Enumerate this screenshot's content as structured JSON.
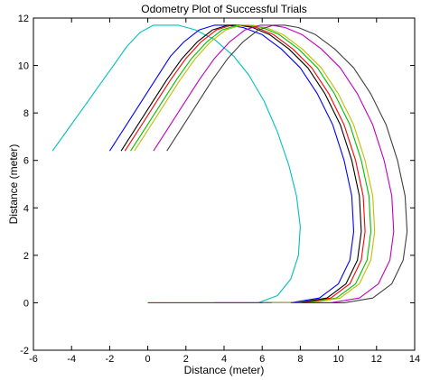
{
  "chart_data": {
    "type": "line",
    "title": "Odometry Plot of Successful Trials",
    "xlabel": "Distance (meter)",
    "ylabel": "Distance (meter)",
    "xlim": [
      -6,
      14
    ],
    "ylim": [
      -2,
      12
    ],
    "xticks": [
      -6,
      -4,
      -2,
      0,
      2,
      4,
      6,
      8,
      10,
      12,
      14
    ],
    "yticks": [
      -2,
      0,
      2,
      4,
      6,
      8,
      10,
      12
    ],
    "grid": false,
    "legend": "none",
    "series": [
      {
        "color": "#00bfbf",
        "points": [
          [
            -5.0,
            6.4
          ],
          [
            -4.2,
            7.3
          ],
          [
            -3.4,
            8.2
          ],
          [
            -2.6,
            9.1
          ],
          [
            -1.8,
            10.0
          ],
          [
            -1.1,
            10.8
          ],
          [
            -0.4,
            11.4
          ],
          [
            0.3,
            11.7
          ],
          [
            1.0,
            11.7
          ],
          [
            1.6,
            11.7
          ],
          [
            2.5,
            11.5
          ],
          [
            3.5,
            11.1
          ],
          [
            4.5,
            10.4
          ],
          [
            5.3,
            9.6
          ],
          [
            6.1,
            8.5
          ],
          [
            6.8,
            7.2
          ],
          [
            7.4,
            5.8
          ],
          [
            7.8,
            4.5
          ],
          [
            8.0,
            3.2
          ],
          [
            7.9,
            2.0
          ],
          [
            7.5,
            1.0
          ],
          [
            6.8,
            0.3
          ],
          [
            5.8,
            0.0
          ],
          [
            4.0,
            0.0
          ],
          [
            2.0,
            0.0
          ],
          [
            0.0,
            0.0
          ]
        ]
      },
      {
        "color": "#0000ff",
        "points": [
          [
            -2.0,
            6.4
          ],
          [
            -1.2,
            7.4
          ],
          [
            -0.4,
            8.4
          ],
          [
            0.4,
            9.4
          ],
          [
            1.2,
            10.4
          ],
          [
            1.9,
            11.0
          ],
          [
            2.7,
            11.5
          ],
          [
            3.5,
            11.7
          ],
          [
            4.2,
            11.7
          ],
          [
            5.0,
            11.6
          ],
          [
            6.0,
            11.3
          ],
          [
            7.0,
            10.7
          ],
          [
            8.0,
            9.9
          ],
          [
            8.9,
            8.8
          ],
          [
            9.7,
            7.5
          ],
          [
            10.3,
            6.0
          ],
          [
            10.7,
            4.5
          ],
          [
            10.8,
            3.0
          ],
          [
            10.6,
            1.8
          ],
          [
            10.0,
            0.8
          ],
          [
            9.0,
            0.2
          ],
          [
            7.5,
            0.0
          ],
          [
            5.5,
            0.0
          ],
          [
            3.5,
            0.0
          ]
        ]
      },
      {
        "color": "#ff0000",
        "points": [
          [
            -1.2,
            6.4
          ],
          [
            -0.4,
            7.4
          ],
          [
            0.4,
            8.4
          ],
          [
            1.2,
            9.4
          ],
          [
            2.0,
            10.3
          ],
          [
            2.8,
            11.0
          ],
          [
            3.6,
            11.5
          ],
          [
            4.4,
            11.7
          ],
          [
            5.0,
            11.7
          ],
          [
            5.7,
            11.6
          ],
          [
            6.6,
            11.3
          ],
          [
            7.6,
            10.7
          ],
          [
            8.6,
            9.9
          ],
          [
            9.5,
            8.8
          ],
          [
            10.3,
            7.5
          ],
          [
            10.9,
            6.0
          ],
          [
            11.3,
            4.5
          ],
          [
            11.4,
            3.0
          ],
          [
            11.2,
            1.8
          ],
          [
            10.6,
            0.8
          ],
          [
            9.6,
            0.2
          ],
          [
            8.1,
            0.0
          ],
          [
            6.0,
            0.0
          ],
          [
            4.0,
            0.0
          ],
          [
            2.0,
            0.0
          ],
          [
            0.0,
            0.0
          ]
        ]
      },
      {
        "color": "#000000",
        "points": [
          [
            -1.4,
            6.4
          ],
          [
            -0.6,
            7.4
          ],
          [
            0.2,
            8.4
          ],
          [
            1.0,
            9.4
          ],
          [
            1.8,
            10.3
          ],
          [
            2.6,
            11.0
          ],
          [
            3.4,
            11.5
          ],
          [
            4.2,
            11.7
          ],
          [
            4.8,
            11.7
          ],
          [
            5.5,
            11.6
          ],
          [
            6.4,
            11.3
          ],
          [
            7.4,
            10.7
          ],
          [
            8.4,
            9.9
          ],
          [
            9.3,
            8.8
          ],
          [
            10.1,
            7.5
          ],
          [
            10.7,
            6.0
          ],
          [
            11.1,
            4.5
          ],
          [
            11.2,
            3.0
          ],
          [
            11.0,
            1.8
          ],
          [
            10.4,
            0.8
          ],
          [
            9.4,
            0.2
          ],
          [
            7.9,
            0.0
          ],
          [
            6.0,
            0.0
          ]
        ]
      },
      {
        "color": "#00bf00",
        "points": [
          [
            -0.9,
            6.4
          ],
          [
            -0.1,
            7.4
          ],
          [
            0.7,
            8.4
          ],
          [
            1.5,
            9.4
          ],
          [
            2.3,
            10.3
          ],
          [
            3.1,
            11.0
          ],
          [
            3.9,
            11.5
          ],
          [
            4.7,
            11.7
          ],
          [
            5.3,
            11.7
          ],
          [
            6.0,
            11.6
          ],
          [
            6.9,
            11.3
          ],
          [
            7.9,
            10.7
          ],
          [
            8.9,
            9.9
          ],
          [
            9.8,
            8.8
          ],
          [
            10.6,
            7.5
          ],
          [
            11.2,
            6.0
          ],
          [
            11.6,
            4.5
          ],
          [
            11.7,
            3.0
          ],
          [
            11.5,
            1.8
          ],
          [
            10.9,
            0.8
          ],
          [
            9.9,
            0.2
          ],
          [
            8.4,
            0.0
          ],
          [
            6.0,
            0.0
          ]
        ]
      },
      {
        "color": "#bfbf00",
        "points": [
          [
            -0.7,
            6.4
          ],
          [
            0.1,
            7.4
          ],
          [
            0.9,
            8.4
          ],
          [
            1.7,
            9.4
          ],
          [
            2.5,
            10.3
          ],
          [
            3.3,
            11.0
          ],
          [
            4.1,
            11.5
          ],
          [
            4.9,
            11.7
          ],
          [
            5.5,
            11.7
          ],
          [
            6.2,
            11.6
          ],
          [
            7.1,
            11.3
          ],
          [
            8.1,
            10.7
          ],
          [
            9.1,
            9.9
          ],
          [
            10.0,
            8.8
          ],
          [
            10.8,
            7.5
          ],
          [
            11.4,
            6.0
          ],
          [
            11.8,
            4.5
          ],
          [
            11.9,
            3.0
          ],
          [
            11.7,
            1.8
          ],
          [
            11.1,
            0.8
          ],
          [
            10.1,
            0.2
          ],
          [
            8.6,
            0.0
          ],
          [
            6.5,
            0.0
          ]
        ]
      },
      {
        "color": "#bf00bf",
        "points": [
          [
            0.3,
            6.4
          ],
          [
            1.1,
            7.4
          ],
          [
            1.9,
            8.4
          ],
          [
            2.7,
            9.4
          ],
          [
            3.5,
            10.3
          ],
          [
            4.3,
            11.0
          ],
          [
            5.1,
            11.5
          ],
          [
            5.9,
            11.7
          ],
          [
            6.5,
            11.7
          ],
          [
            7.2,
            11.6
          ],
          [
            8.1,
            11.3
          ],
          [
            9.1,
            10.7
          ],
          [
            10.1,
            9.9
          ],
          [
            11.0,
            8.8
          ],
          [
            11.8,
            7.5
          ],
          [
            12.4,
            6.0
          ],
          [
            12.8,
            4.5
          ],
          [
            12.9,
            3.0
          ],
          [
            12.7,
            1.8
          ],
          [
            12.1,
            0.8
          ],
          [
            11.1,
            0.2
          ],
          [
            9.6,
            0.0
          ],
          [
            7.5,
            0.0
          ]
        ]
      },
      {
        "color": "#404040",
        "points": [
          [
            1.0,
            6.4
          ],
          [
            1.8,
            7.4
          ],
          [
            2.6,
            8.4
          ],
          [
            3.4,
            9.4
          ],
          [
            4.2,
            10.3
          ],
          [
            5.0,
            11.0
          ],
          [
            5.8,
            11.5
          ],
          [
            6.6,
            11.7
          ],
          [
            7.2,
            11.7
          ],
          [
            7.9,
            11.6
          ],
          [
            8.8,
            11.3
          ],
          [
            9.8,
            10.7
          ],
          [
            10.8,
            9.9
          ],
          [
            11.7,
            8.8
          ],
          [
            12.5,
            7.5
          ],
          [
            13.1,
            6.0
          ],
          [
            13.5,
            4.5
          ],
          [
            13.6,
            3.0
          ],
          [
            13.4,
            1.8
          ],
          [
            12.8,
            0.8
          ],
          [
            11.8,
            0.2
          ],
          [
            10.3,
            0.0
          ],
          [
            8.0,
            0.0
          ]
        ]
      }
    ]
  }
}
